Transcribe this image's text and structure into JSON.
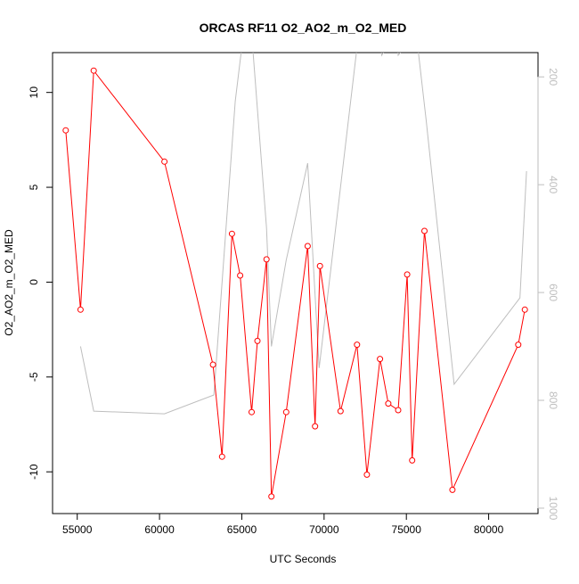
{
  "chart_data": {
    "type": "line",
    "title": "ORCAS RF11 O2_AO2_m_O2_MED",
    "xlabel": "UTC Seconds",
    "ylabel": "O2_AO2_m_O2_MED",
    "xlim": [
      53500,
      83000
    ],
    "ylim": [
      -12.2,
      12.1
    ],
    "x_ticks": [
      55000,
      60000,
      65000,
      70000,
      75000,
      80000
    ],
    "y_ticks": [
      -10,
      -5,
      0,
      5,
      10
    ],
    "y2_ticks": [
      200,
      400,
      600,
      800,
      1000
    ],
    "y2lim": [
      1010,
      155
    ],
    "grid": false,
    "legend": "none",
    "colors": {
      "series": "#ff0000",
      "secondary": "#bebebe",
      "axis": "#000000"
    },
    "series": [
      {
        "axis": "left",
        "style": "line-with-open-circles",
        "color": "#ff0000",
        "x": [
          54300,
          55200,
          56000,
          60300,
          63250,
          63800,
          64400,
          64900,
          65600,
          65950,
          66500,
          66800,
          67700,
          69000,
          69450,
          69750,
          71000,
          72000,
          72600,
          73400,
          73900,
          74500,
          75050,
          75350,
          76100,
          77800,
          81800,
          82200
        ],
        "y": [
          8.0,
          -1.45,
          11.15,
          6.35,
          -4.35,
          -9.2,
          2.55,
          0.35,
          -6.85,
          -3.1,
          1.2,
          -11.3,
          -6.85,
          1.9,
          -7.6,
          0.85,
          -6.8,
          -3.3,
          -10.15,
          -4.05,
          -6.4,
          -6.75,
          0.4,
          -9.4,
          2.7,
          -10.95,
          -3.3,
          -1.45
        ]
      },
      {
        "axis": "right",
        "style": "line",
        "color": "#bebebe",
        "x": [
          55200,
          56000,
          60300,
          63300,
          64600,
          65100,
          65600,
          66500,
          66800,
          67700,
          69000,
          69700,
          72100,
          73400,
          73500,
          74400,
          74500,
          75600,
          76200,
          77900,
          81900,
          82300
        ],
        "y": [
          700,
          820,
          825,
          790,
          245,
          120,
          120,
          480,
          700,
          540,
          360,
          740,
          120,
          120,
          160,
          120,
          160,
          120,
          280,
          770,
          610,
          375
        ]
      }
    ]
  }
}
